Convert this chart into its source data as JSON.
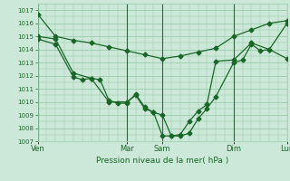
{
  "background_color": "#cce8d8",
  "grid_color": "#99ccaa",
  "line_color": "#1a6628",
  "marker_color": "#1a6628",
  "xlabel": "Pression niveau de la mer( hPa )",
  "ylim": [
    1007,
    1017.5
  ],
  "ytick_vals": [
    1007,
    1008,
    1009,
    1010,
    1011,
    1012,
    1013,
    1014,
    1015,
    1016,
    1017
  ],
  "xtick_labels": [
    "Ven",
    "Mar",
    "Sam",
    "Dim",
    "Lun"
  ],
  "xtick_positions": [
    0,
    10,
    14,
    22,
    28
  ],
  "vline_positions": [
    0,
    10,
    14,
    22,
    28
  ],
  "xlim": [
    0,
    28
  ],
  "line1_x": [
    0,
    2,
    4,
    6,
    8,
    10,
    12,
    14,
    16,
    18,
    20,
    22,
    24,
    26,
    28
  ],
  "line1_y": [
    1016.7,
    1015.0,
    1014.7,
    1014.5,
    1014.2,
    1013.9,
    1013.6,
    1013.3,
    1013.5,
    1013.8,
    1014.1,
    1015.0,
    1015.5,
    1016.0,
    1016.2
  ],
  "line2_x": [
    0,
    2,
    4,
    6,
    8,
    10,
    11,
    12,
    13,
    14,
    15,
    16,
    17,
    18,
    19,
    20,
    22,
    24,
    26,
    28
  ],
  "line2_y": [
    1015.0,
    1014.8,
    1012.2,
    1011.8,
    1010.0,
    1010.0,
    1010.5,
    1009.5,
    1009.2,
    1007.4,
    1007.4,
    1007.5,
    1008.5,
    1009.3,
    1009.8,
    1013.1,
    1013.2,
    1014.5,
    1014.0,
    1016.0
  ],
  "line3_x": [
    0,
    2,
    4,
    5,
    6,
    7,
    8,
    9,
    10,
    11,
    12,
    13,
    14,
    15,
    16,
    17,
    18,
    19,
    20,
    22,
    23,
    24,
    25,
    26,
    28
  ],
  "line3_y": [
    1014.8,
    1014.4,
    1011.9,
    1011.7,
    1011.8,
    1011.7,
    1010.1,
    1009.9,
    1009.9,
    1010.6,
    1009.6,
    1009.2,
    1009.0,
    1007.4,
    1007.4,
    1007.6,
    1008.7,
    1009.5,
    1010.4,
    1013.0,
    1013.2,
    1014.4,
    1013.9,
    1014.0,
    1013.3
  ]
}
